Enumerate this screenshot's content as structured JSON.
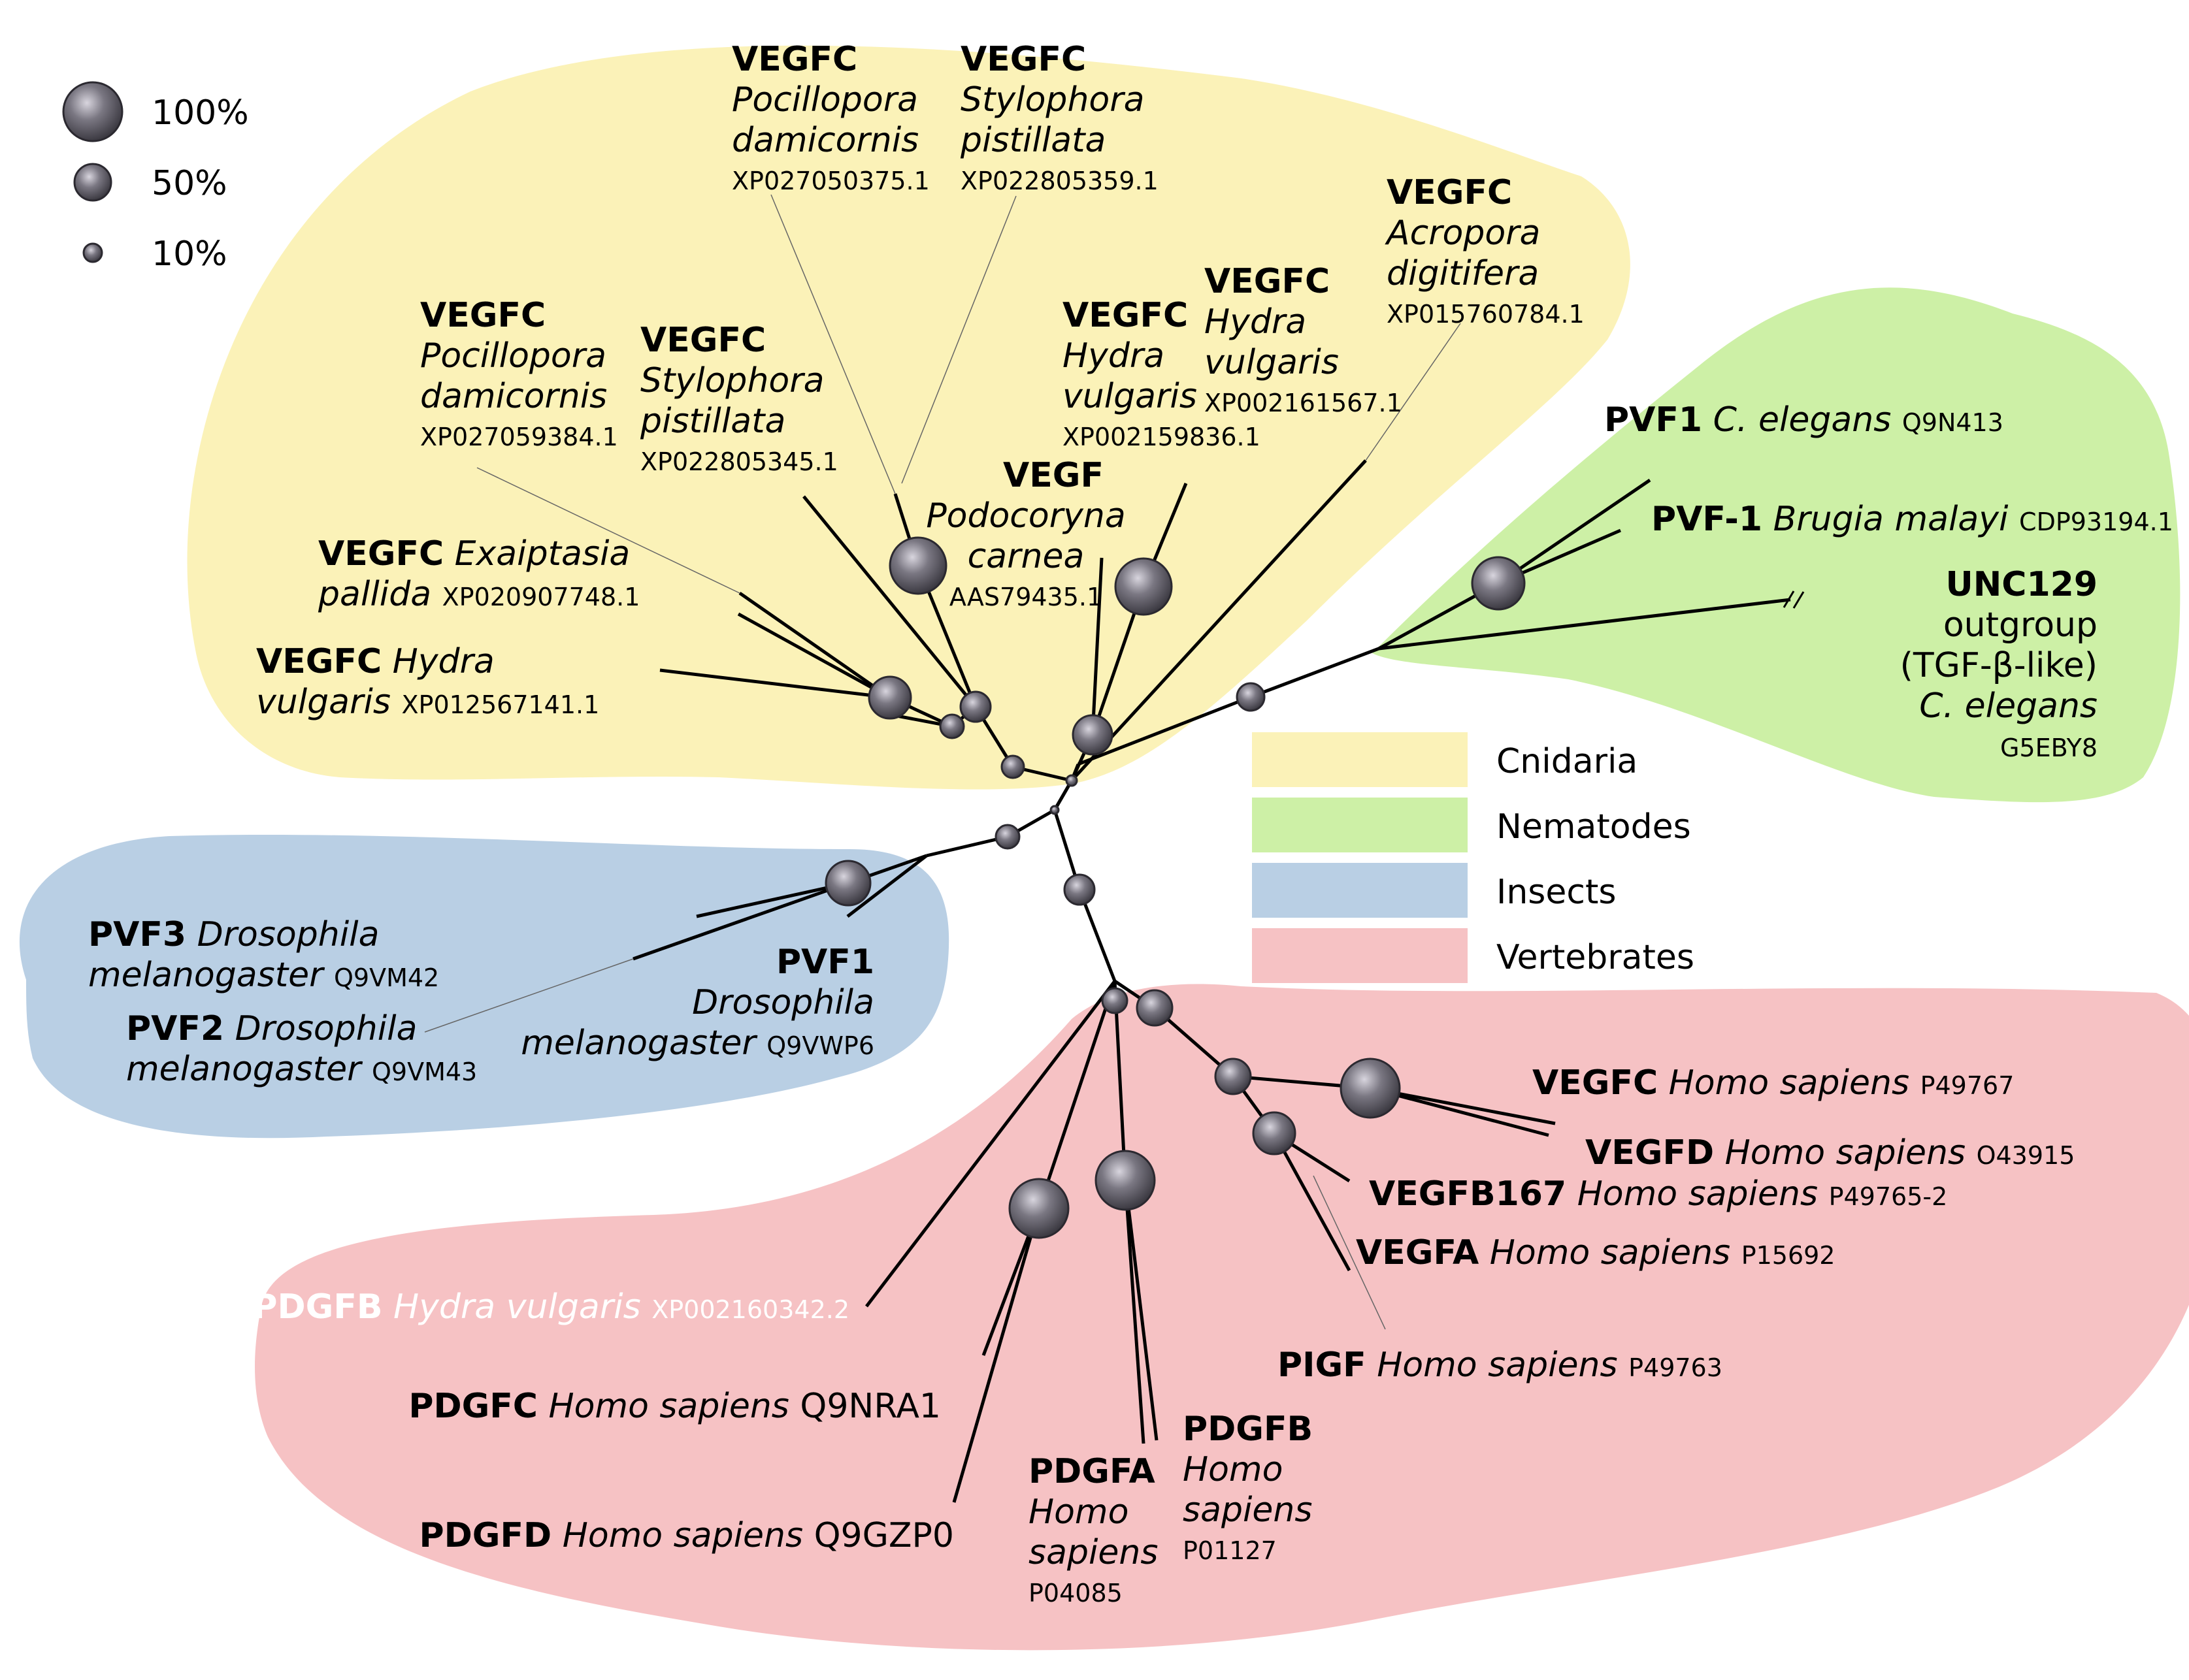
{
  "groups": {
    "cnidaria": {
      "label": "Cnidaria",
      "color": "#fbf2b8"
    },
    "nematodes": {
      "label": "Nematodes",
      "color": "#cdf0a6"
    },
    "insects": {
      "label": "Insects",
      "color": "#b9cfe4"
    },
    "vertebrates": {
      "label": "Vertebrates",
      "color": "#f6c2c4"
    }
  },
  "support_legend": [
    {
      "label": "100%",
      "value": 100
    },
    {
      "label": "50%",
      "value": 50
    },
    {
      "label": "10%",
      "value": 10
    }
  ],
  "leaves": {
    "vegfc_pdam1": {
      "gene": "VEGFC",
      "species_l1": "Pocillopora",
      "species_l2": "damicornis",
      "accession": "XP027050375.1"
    },
    "vegfc_spis1": {
      "gene": "VEGFC",
      "species_l1": "Stylophora",
      "species_l2": "pistillata",
      "accession": "XP022805359.1"
    },
    "vegfc_adig": {
      "gene": "VEGFC",
      "species_l1": "Acropora",
      "species_l2": "digitifera",
      "accession": "XP015760784.1"
    },
    "vegfc_pdam2": {
      "gene": "VEGFC",
      "species_l1": "Pocillopora",
      "species_l2": "damicornis",
      "accession": "XP027059384.1"
    },
    "vegfc_spis2": {
      "gene": "VEGFC",
      "species_l1": "Stylophora",
      "species_l2": "pistillata",
      "accession": "XP022805345.1"
    },
    "vegfc_hvul1": {
      "gene": "VEGFC",
      "species_l1": "Hydra",
      "species_l2": "vulgaris",
      "accession": "XP002159836.1"
    },
    "vegfc_hvul2": {
      "gene": "VEGFC",
      "species_l1": "Hydra",
      "species_l2": "vulgaris",
      "accession": "XP002161567.1"
    },
    "vegf_pcar": {
      "gene": "VEGF",
      "species_l1": "Podocoryna",
      "species_l2": "carnea",
      "accession": "AAS79435.1"
    },
    "vegfc_epal": {
      "gene": "VEGFC",
      "species_l1": "Exaiptasia",
      "species_l2": "pallida",
      "accession": "XP020907748.1"
    },
    "vegfc_hvul3": {
      "gene": "VEGFC",
      "species_l1": "Hydra",
      "species_l2": "vulgaris",
      "accession": "XP012567141.1"
    },
    "pvf1_cel": {
      "gene": "PVF1",
      "species": "C. elegans",
      "accession": "Q9N413"
    },
    "pvf1_bma": {
      "gene": "PVF-1",
      "species": "Brugia malayi",
      "accession": "CDP93194.1"
    },
    "unc129": {
      "gene": "UNC129",
      "line2": "outgroup",
      "line3": "(TGF-β-like)",
      "species": "C. elegans",
      "accession": "G5EBY8"
    },
    "pvf3_dme": {
      "gene": "PVF3",
      "species_l1": "Drosophila",
      "species_l2": "melanogaster",
      "accession": "Q9VM42"
    },
    "pvf2_dme": {
      "gene": "PVF2",
      "species_l1": "Drosophila",
      "species_l2": "melanogaster",
      "accession": "Q9VM43"
    },
    "pvf1_dme": {
      "gene": "PVF1",
      "species_l1": "Drosophila",
      "species_l2": "melanogaster",
      "accession": "Q9VWP6"
    },
    "vegfc_hsa": {
      "gene": "VEGFC",
      "species": "Homo sapiens",
      "accession": "P49767"
    },
    "vegfd_hsa": {
      "gene": "VEGFD",
      "species": "Homo sapiens",
      "accession": "O43915"
    },
    "vegfb_hsa": {
      "gene": "VEGFB167",
      "species": "Homo sapiens",
      "accession": "P49765-2"
    },
    "vegfa_hsa": {
      "gene": "VEGFA",
      "species": "Homo sapiens",
      "accession": "P15692"
    },
    "pigf_hsa": {
      "gene": "PIGF",
      "species": "Homo sapiens",
      "accession": "P49763"
    },
    "pdgfb_hvul": {
      "gene": "PDGFB",
      "species": "Hydra vulgaris",
      "accession": "XP002160342.2"
    },
    "pdgfc_hsa": {
      "gene": "PDGFC",
      "species": "Homo sapiens",
      "accession": "Q9NRA1"
    },
    "pdgfd_hsa": {
      "gene": "PDGFD",
      "species": "Homo sapiens",
      "accession": "Q9GZP0"
    },
    "pdgfa_hsa": {
      "gene": "PDGFA",
      "species_l1": "Homo",
      "species_l2": "sapiens",
      "accession": "P04085"
    },
    "pdgfb_hsa": {
      "gene": "PDGFB",
      "species_l1": "Homo",
      "species_l2": "sapiens",
      "accession": "P01127"
    }
  }
}
